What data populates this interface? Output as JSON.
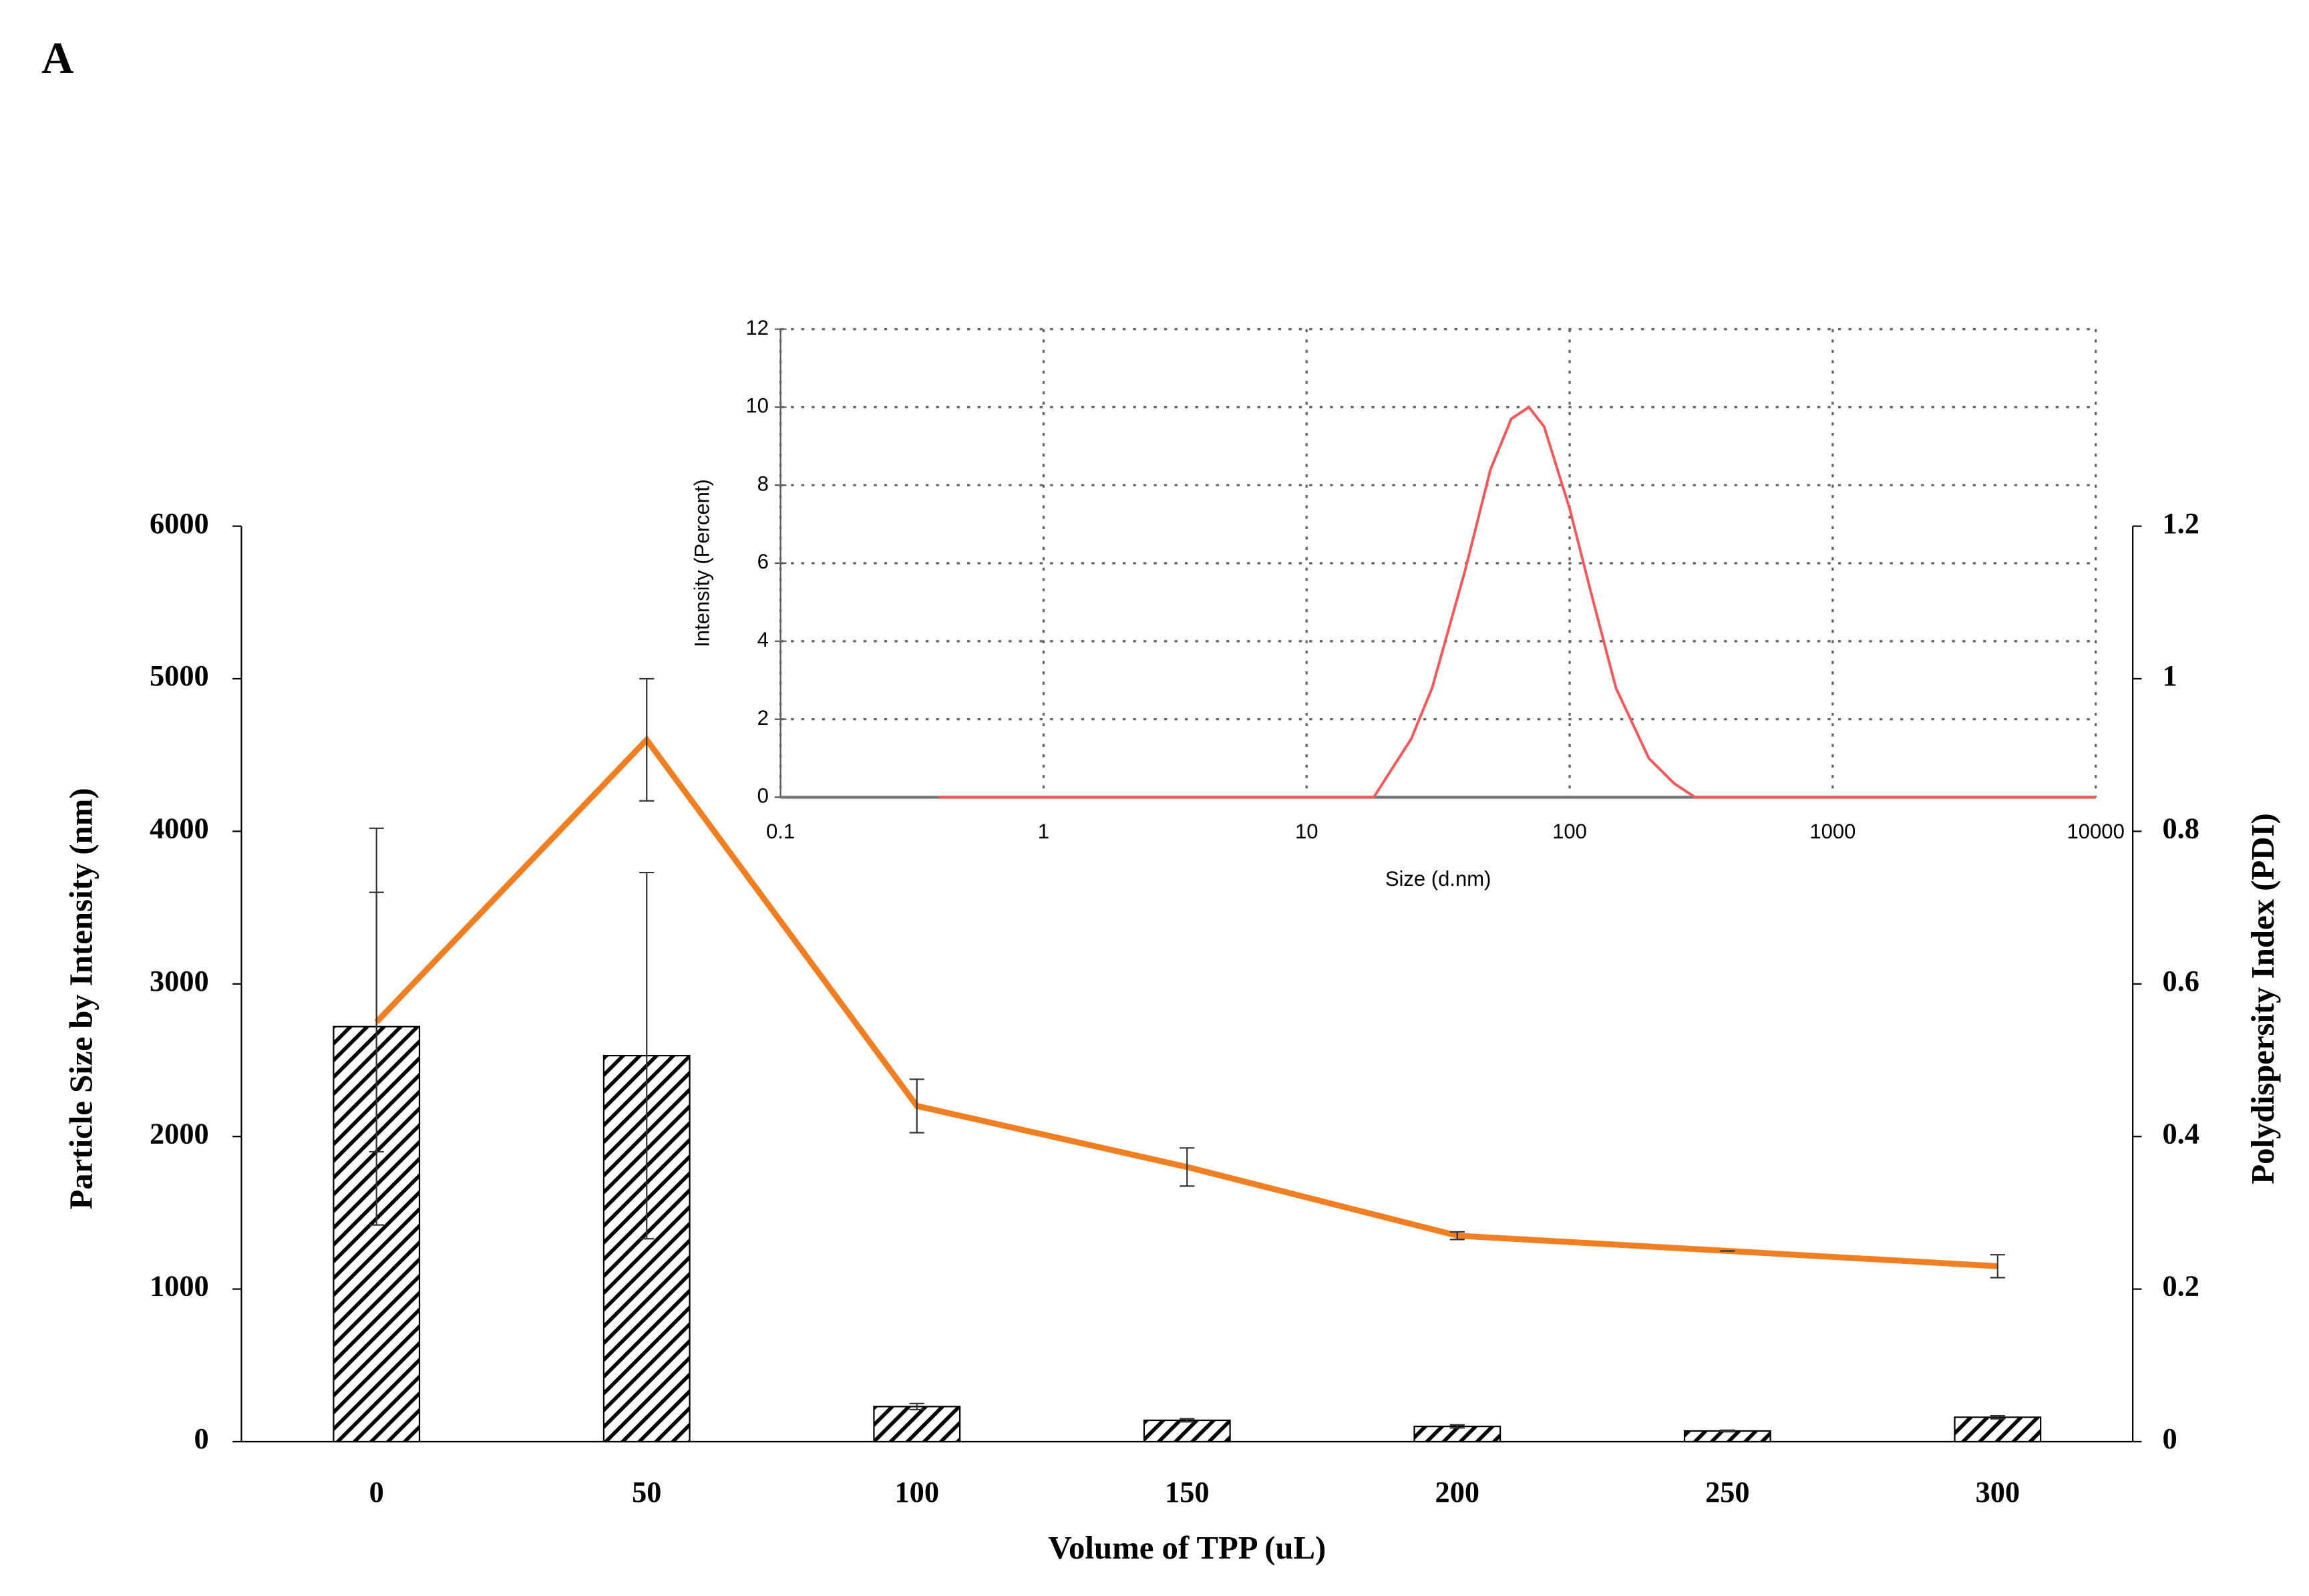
{
  "panel_label": "A",
  "chart_data": [
    {
      "type": "bar-line",
      "x_label": "Volume of TPP (uL)",
      "y_label": "Particle Size by Intensity (nm)",
      "y2_label": "Polydispersity Index (PDI)",
      "categories": [
        "0",
        "50",
        "100",
        "150",
        "200",
        "250",
        "300"
      ],
      "series": [
        {
          "kind": "bar",
          "color": "#000000",
          "values": [
            2720,
            2530,
            230,
            140,
            100,
            70,
            160
          ],
          "errors": [
            1300,
            1200,
            20,
            10,
            10,
            5,
            10
          ]
        },
        {
          "kind": "line",
          "axis": "y2",
          "color": "#f07f24",
          "values": [
            0.55,
            0.92,
            0.44,
            0.36,
            0.27,
            0.25,
            0.23
          ],
          "errors": [
            0.17,
            0.08,
            0.035,
            0.025,
            0.005,
            0,
            0.015
          ]
        }
      ],
      "ylim": [
        0,
        6000
      ],
      "yticks": [
        0,
        1000,
        2000,
        3000,
        4000,
        5000,
        6000
      ],
      "y2lim": [
        0,
        1.2
      ],
      "y2ticks": [
        0,
        0.2,
        0.4,
        0.6,
        0.8,
        1,
        1.2
      ]
    },
    {
      "type": "line",
      "x_label": "Size (d.nm)",
      "y_label": "Intensity (Percent)",
      "xscale": "log",
      "grid": true,
      "x": [
        0.4,
        1,
        10,
        18,
        25,
        30,
        40,
        50,
        60,
        70,
        80,
        100,
        120,
        150,
        200,
        250,
        300,
        1000,
        10000
      ],
      "series": [
        {
          "color": "#f05a5a",
          "values": [
            0,
            0,
            0,
            0,
            1.5,
            2.8,
            5.8,
            8.4,
            9.7,
            10,
            9.5,
            7.4,
            5.3,
            2.8,
            1.0,
            0.35,
            0,
            0,
            0
          ]
        }
      ],
      "xlim": [
        0.1,
        10000
      ],
      "xticks": [
        0.1,
        1,
        10,
        100,
        1000,
        10000
      ],
      "ylim": [
        0,
        12
      ],
      "yticks": [
        0,
        2,
        4,
        6,
        8,
        10,
        12
      ]
    }
  ]
}
